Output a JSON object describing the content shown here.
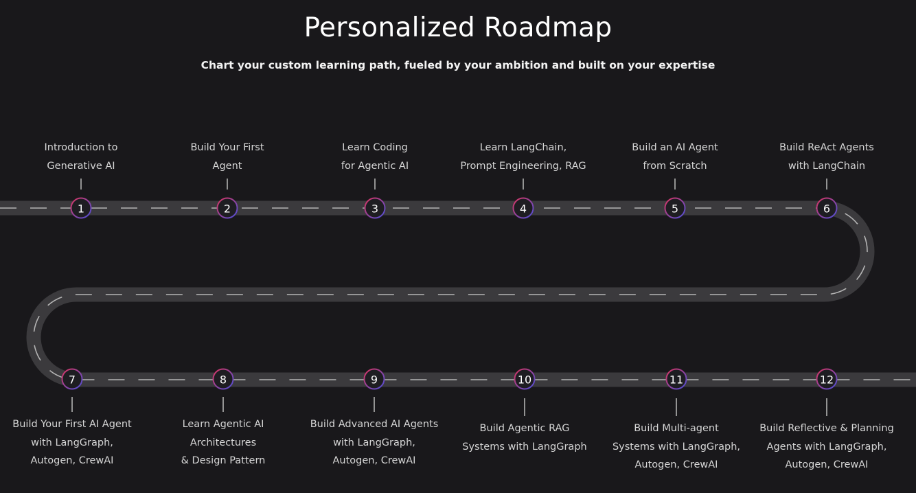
{
  "header": {
    "title": "Personalized Roadmap",
    "subtitle": "Chart your custom learning path, fueled by your ambition and built on your expertise"
  },
  "colors": {
    "background": "#19181b",
    "road": "#3b3a3d",
    "dash": "#b5b5b5",
    "marker_fill": "#1e1d22",
    "marker_ring_start": "#d8345f",
    "marker_ring_end": "#4c4fd8"
  },
  "steps": [
    {
      "number": "1",
      "label": "Introduction to\nGenerative AI"
    },
    {
      "number": "2",
      "label": "Build Your First\nAgent"
    },
    {
      "number": "3",
      "label": "Learn Coding\nfor Agentic AI"
    },
    {
      "number": "4",
      "label": "Learn LangChain,\nPrompt Engineering, RAG"
    },
    {
      "number": "5",
      "label": "Build an AI Agent\nfrom Scratch"
    },
    {
      "number": "6",
      "label": "Build ReAct Agents\nwith LangChain"
    },
    {
      "number": "7",
      "label": "Build Your First AI Agent\nwith LangGraph,\nAutogen, CrewAI"
    },
    {
      "number": "8",
      "label": "Learn Agentic AI\nArchitectures\n& Design Pattern"
    },
    {
      "number": "9",
      "label": "Build Advanced AI Agents\nwith LangGraph,\nAutogen, CrewAI"
    },
    {
      "number": "10",
      "label": "Build Agentic RAG\nSystems with LangGraph"
    },
    {
      "number": "11",
      "label": "Build Multi-agent\nSystems with LangGraph,\nAutogen, CrewAI"
    },
    {
      "number": "12",
      "label": "Build Reflective & Planning\nAgents with LangGraph,\nAutogen, CrewAI"
    }
  ]
}
